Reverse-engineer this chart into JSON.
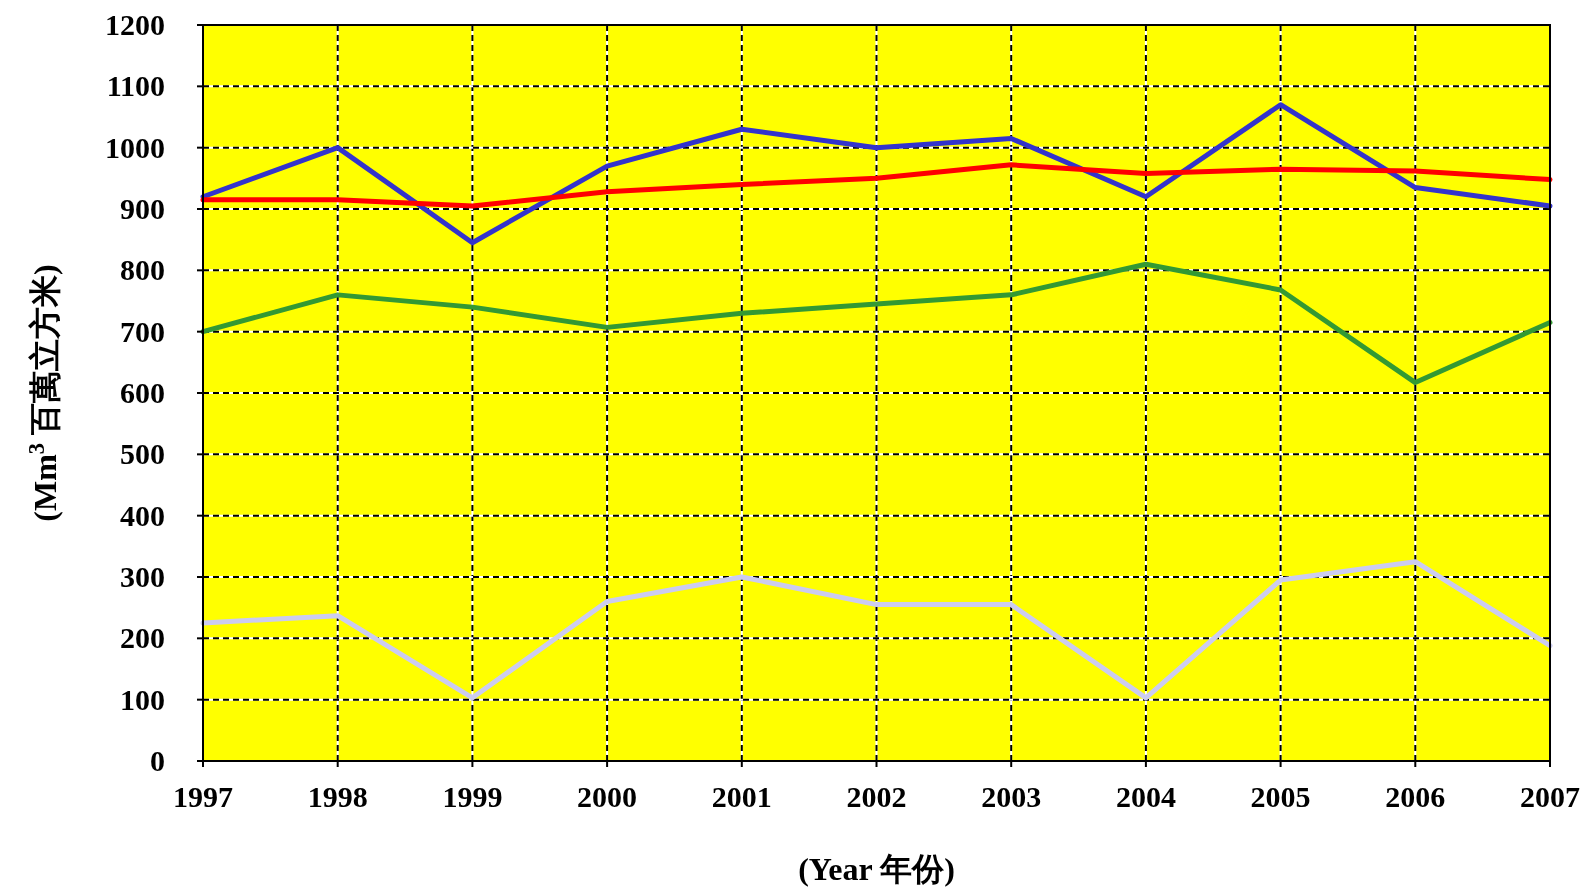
{
  "chart_data": {
    "type": "line",
    "xlabel": "(Year 年份)",
    "ylabel": "(Mm$^{3}$ 百萬立方米)",
    "x": [
      1997,
      1998,
      1999,
      2000,
      2001,
      2002,
      2003,
      2004,
      2005,
      2006,
      2007
    ],
    "series": [
      {
        "color": "#3333cc",
        "values": [
          920,
          1000,
          845,
          970,
          1030,
          1000,
          1015,
          920,
          1070,
          935,
          905
        ]
      },
      {
        "color": "#ff0000",
        "values": [
          915,
          915,
          905,
          928,
          940,
          950,
          972,
          958,
          965,
          962,
          948
        ]
      },
      {
        "color": "#339933",
        "values": [
          700,
          760,
          740,
          707,
          730,
          745,
          760,
          810,
          768,
          617,
          715
        ]
      },
      {
        "color": "#ccccf0",
        "values": [
          225,
          237,
          103,
          260,
          300,
          255,
          255,
          103,
          295,
          325,
          188
        ]
      }
    ],
    "xlim": [
      1997,
      2007
    ],
    "xticks": [
      1997,
      1998,
      1999,
      2000,
      2001,
      2002,
      2003,
      2004,
      2005,
      2006,
      2007
    ],
    "ylim": [
      0,
      1200
    ],
    "yticks": [
      0,
      100,
      200,
      300,
      400,
      500,
      600,
      700,
      800,
      900,
      1000,
      1100,
      1200
    ],
    "grid": true,
    "marker": "none",
    "line_style": "solid"
  }
}
